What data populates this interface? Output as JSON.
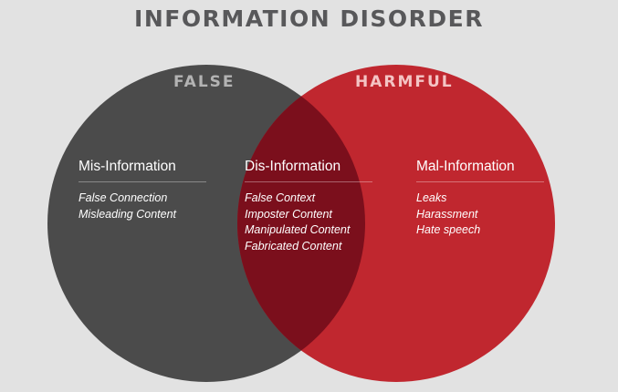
{
  "title": "INFORMATION DISORDER",
  "sets": {
    "false_label": "FALSE",
    "harmful_label": "HARMFUL"
  },
  "colors": {
    "background": "#e2e2e2",
    "false_circle": "#4b4b4b",
    "harmful_circle": "#c0272f",
    "overlap": "#7b0f1c"
  },
  "groups": {
    "mis": {
      "title": "Mis-Information",
      "items": [
        "False Connection",
        "Misleading Content"
      ]
    },
    "dis": {
      "title": "Dis-Information",
      "items": [
        "False Context",
        "Imposter Content",
        "Manipulated Content",
        "Fabricated Content"
      ]
    },
    "mal": {
      "title": "Mal-Information",
      "items": [
        "Leaks",
        "Harassment",
        "Hate speech"
      ]
    }
  }
}
